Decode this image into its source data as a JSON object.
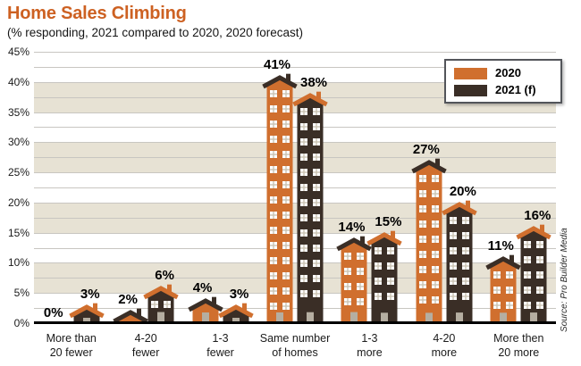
{
  "header": {
    "title": "Home Sales Climbing",
    "subtitle": "(% responding, 2021 compared to 2020, 2020 forecast)"
  },
  "source_note": "Source: Pro Builder Media",
  "legend": {
    "items": [
      {
        "label": "2020",
        "color": "#d06f2e"
      },
      {
        "label": "2021 (f)",
        "color": "#3a2e26"
      }
    ]
  },
  "colors": {
    "orange": "#d06f2e",
    "dark_brown": "#3a2e26",
    "band_beige": "#e7e2d4",
    "band_white": "#ffffff",
    "gridline": "#c8c6c1",
    "baseline": "#000000",
    "window": "#ffffff",
    "window_pane": "#c9c2b2",
    "door": "#b5aea1",
    "title": "#cd6122"
  },
  "chart_data": {
    "type": "bar",
    "title": "Home Sales Climbing",
    "subtitle": "(% responding, 2021 compared to 2020, 2020 forecast)",
    "categories": [
      "More than\n20 fewer",
      "4-20\nfewer",
      "1-3\nfewer",
      "Same number\nof homes",
      "1-3\nmore",
      "4-20\nmore",
      "More then\n20 more"
    ],
    "series": [
      {
        "name": "2020",
        "color": "#d06f2e",
        "values": [
          0,
          2,
          4,
          41,
          14,
          27,
          11
        ],
        "labels": [
          "0%",
          "2%",
          "4%",
          "41%",
          "14%",
          "27%",
          "11%"
        ]
      },
      {
        "name": "2021 (f)",
        "color": "#3a2e26",
        "values": [
          3,
          6,
          3,
          38,
          15,
          20,
          16
        ],
        "labels": [
          "3%",
          "6%",
          "3%",
          "38%",
          "15%",
          "20%",
          "16%"
        ]
      }
    ],
    "ylim": [
      0,
      45
    ],
    "ytick_labels": [
      "45%",
      "40%",
      "35%",
      "30%",
      "25%",
      "20%",
      "15%",
      "10%",
      "5%",
      "0%"
    ],
    "ytick_step": 5,
    "grid_minor_step": 2.5,
    "grid": true,
    "legend_position": "top-right",
    "source": "Source: Pro Builder Media"
  }
}
